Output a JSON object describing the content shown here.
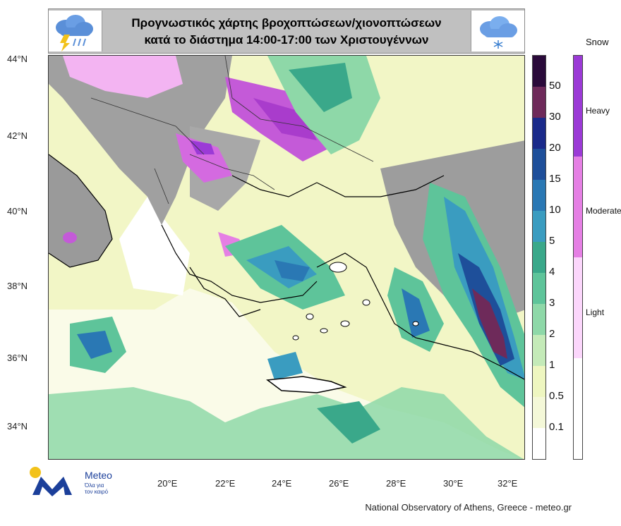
{
  "title": {
    "line1": "Προγνωστικός χάρτης βροχοπτώσεων/χιονοπτώσεων",
    "line2": "κατά το διάστημα 14:00-17:00 των Χριστουγέννων"
  },
  "icons": {
    "left": "storm-cloud-rain-icon",
    "right": "snow-cloud-icon"
  },
  "latitudes": [
    "44°N",
    "42°N",
    "40°N",
    "38°N",
    "36°N",
    "34°N"
  ],
  "longitudes": [
    "20°E",
    "22°E",
    "24°E",
    "26°E",
    "28°E",
    "30°E",
    "32°E"
  ],
  "rain_legend": {
    "levels": [
      "50",
      "30",
      "20",
      "15",
      "10",
      "5",
      "4",
      "3",
      "2",
      "1",
      "0.5",
      "0.1"
    ],
    "colors": [
      "#2a0a3a",
      "#6e2a5a",
      "#1a2a8a",
      "#1e4f9a",
      "#2a78b4",
      "#3a9cc0",
      "#3aa88a",
      "#5ec49a",
      "#8ed8a8",
      "#c4eab8",
      "#eef6c0",
      "#f4f8d8",
      "#ffffff"
    ]
  },
  "snow_legend": {
    "title": "Snow",
    "levels": [
      {
        "label": "Heavy",
        "color": "#9b3ad6"
      },
      {
        "label": "Moderate",
        "color": "#e57fe4"
      },
      {
        "label": "Light",
        "color": "#fbd6fb"
      }
    ]
  },
  "logo": {
    "name": "Meteo",
    "tagline1": "Όλα για",
    "tagline2": "τον καιρό"
  },
  "footer": "National Observatory of Athens, Greece - meteo.gr"
}
